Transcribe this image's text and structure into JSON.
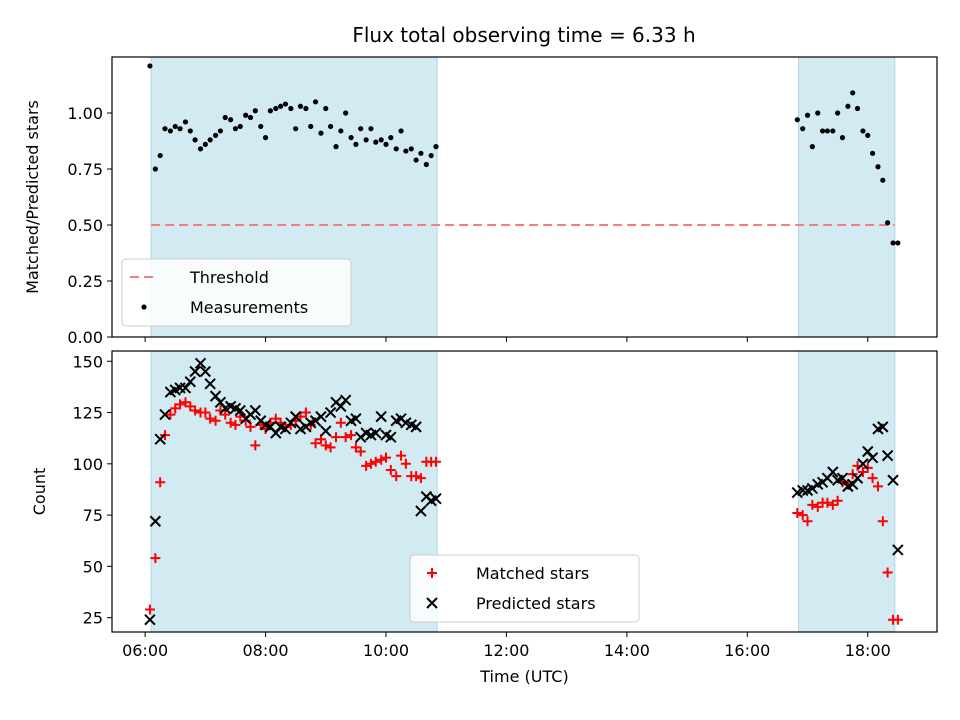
{
  "title": "Flux total observing time = 6.33 h",
  "colors": {
    "span": "#add8e6",
    "threshold": "#f08080",
    "matched": "#ff0000",
    "predicted": "#000000",
    "measure": "#000000"
  },
  "chart_data": [
    {
      "type": "scatter",
      "title": "Flux total observing time = 6.33 h",
      "ylabel": "Matched/Predicted stars",
      "xlabel": "",
      "xlim": [
        5.45,
        19.15
      ],
      "ylim": [
        0,
        1.25
      ],
      "xticks": [
        6,
        8,
        10,
        12,
        14,
        16,
        18
      ],
      "yticks": [
        0,
        0.25,
        0.5,
        0.75,
        1.0
      ],
      "ytick_labels": [
        "0.00",
        "0.25",
        "0.50",
        "0.75",
        "1.00"
      ],
      "legend": [
        "Threshold",
        "Measurements"
      ],
      "legend_position": "lower-left",
      "observing_windows": [
        [
          6.1,
          10.85
        ],
        [
          16.85,
          18.45
        ]
      ],
      "threshold": 0.5,
      "series": [
        {
          "name": "Measurements",
          "x": [
            6.08,
            6.17,
            6.25,
            6.33,
            6.42,
            6.5,
            6.58,
            6.67,
            6.75,
            6.83,
            6.92,
            7.0,
            7.08,
            7.17,
            7.25,
            7.33,
            7.42,
            7.5,
            7.58,
            7.67,
            7.75,
            7.83,
            7.92,
            8.0,
            8.08,
            8.17,
            8.25,
            8.33,
            8.42,
            8.5,
            8.58,
            8.67,
            8.75,
            8.83,
            8.92,
            9.0,
            9.08,
            9.17,
            9.25,
            9.33,
            9.42,
            9.5,
            9.58,
            9.67,
            9.75,
            9.83,
            9.92,
            10.0,
            10.08,
            10.17,
            10.25,
            10.33,
            10.42,
            10.5,
            10.58,
            10.67,
            10.75,
            10.83,
            16.83,
            16.92,
            17.0,
            17.08,
            17.17,
            17.25,
            17.33,
            17.42,
            17.5,
            17.58,
            17.67,
            17.75,
            17.83,
            17.92,
            18.0,
            18.08,
            18.17,
            18.25,
            18.33,
            18.42,
            18.5
          ],
          "y": [
            1.21,
            0.75,
            0.81,
            0.93,
            0.92,
            0.94,
            0.93,
            0.96,
            0.92,
            0.88,
            0.84,
            0.86,
            0.88,
            0.9,
            0.92,
            0.98,
            0.97,
            0.93,
            0.94,
            0.99,
            0.98,
            1.01,
            0.94,
            0.89,
            1.01,
            1.02,
            1.03,
            1.04,
            1.02,
            0.93,
            1.03,
            1.02,
            0.94,
            1.05,
            0.91,
            1.02,
            0.94,
            0.85,
            0.92,
            1.0,
            0.89,
            0.86,
            0.93,
            0.88,
            0.93,
            0.87,
            0.88,
            0.86,
            0.89,
            0.84,
            0.92,
            0.83,
            0.84,
            0.79,
            0.82,
            0.77,
            0.81,
            0.85,
            0.97,
            0.93,
            0.99,
            0.85,
            1.0,
            0.92,
            0.92,
            0.92,
            1.0,
            0.89,
            1.03,
            1.09,
            1.02,
            0.92,
            0.9,
            0.82,
            0.76,
            0.7,
            0.51,
            0.42,
            0.42
          ]
        }
      ]
    },
    {
      "type": "scatter",
      "xlabel": "Time (UTC)",
      "ylabel": "Count",
      "xlim": [
        5.45,
        19.15
      ],
      "ylim": [
        18,
        155
      ],
      "xticks": [
        6,
        8,
        10,
        12,
        14,
        16,
        18
      ],
      "xtick_labels": [
        "06:00",
        "08:00",
        "10:00",
        "12:00",
        "14:00",
        "16:00",
        "18:00"
      ],
      "yticks": [
        25,
        50,
        75,
        100,
        125,
        150
      ],
      "legend": [
        "Matched stars",
        "Predicted stars"
      ],
      "legend_position": "lower-center",
      "observing_windows": [
        [
          6.1,
          10.85
        ],
        [
          16.85,
          18.45
        ]
      ],
      "series": [
        {
          "name": "Matched stars",
          "x": [
            6.08,
            6.17,
            6.25,
            6.33,
            6.42,
            6.5,
            6.58,
            6.67,
            6.75,
            6.83,
            6.92,
            7.0,
            7.08,
            7.17,
            7.25,
            7.33,
            7.42,
            7.5,
            7.58,
            7.67,
            7.75,
            7.83,
            7.92,
            8.0,
            8.08,
            8.17,
            8.25,
            8.33,
            8.42,
            8.5,
            8.58,
            8.67,
            8.75,
            8.83,
            8.92,
            9.0,
            9.08,
            9.17,
            9.25,
            9.33,
            9.42,
            9.5,
            9.58,
            9.67,
            9.75,
            9.83,
            9.92,
            10.0,
            10.08,
            10.17,
            10.25,
            10.33,
            10.42,
            10.5,
            10.58,
            10.67,
            10.75,
            10.83,
            16.83,
            16.92,
            17.0,
            17.08,
            17.17,
            17.25,
            17.33,
            17.42,
            17.5,
            17.58,
            17.67,
            17.75,
            17.83,
            17.92,
            18.0,
            18.08,
            18.17,
            18.25,
            18.33,
            18.42,
            18.5
          ],
          "y": [
            29,
            54,
            91,
            114,
            124,
            127,
            129,
            130,
            128,
            126,
            125,
            125,
            122,
            121,
            126,
            124,
            120,
            119,
            123,
            121,
            118,
            109,
            119,
            117,
            120,
            122,
            120,
            118,
            119,
            121,
            123,
            125,
            119,
            110,
            112,
            109,
            108,
            113,
            120,
            113,
            114,
            108,
            106,
            99,
            100,
            101,
            102,
            103,
            97,
            94,
            104,
            100,
            94,
            94,
            93,
            101,
            101,
            101,
            76,
            75,
            72,
            80,
            79,
            81,
            81,
            80,
            82,
            91,
            90,
            95,
            99,
            96,
            98,
            93,
            89,
            72,
            47,
            24,
            24
          ]
        },
        {
          "name": "Predicted stars",
          "x": [
            6.08,
            6.17,
            6.25,
            6.33,
            6.42,
            6.5,
            6.58,
            6.67,
            6.75,
            6.83,
            6.92,
            7.0,
            7.08,
            7.17,
            7.25,
            7.33,
            7.42,
            7.5,
            7.58,
            7.67,
            7.75,
            7.83,
            7.92,
            8.0,
            8.08,
            8.17,
            8.25,
            8.33,
            8.42,
            8.5,
            8.58,
            8.67,
            8.75,
            8.83,
            8.92,
            9.0,
            9.08,
            9.17,
            9.25,
            9.33,
            9.42,
            9.5,
            9.58,
            9.67,
            9.75,
            9.83,
            9.92,
            10.0,
            10.08,
            10.17,
            10.25,
            10.33,
            10.42,
            10.5,
            10.58,
            10.67,
            10.75,
            10.83,
            16.83,
            16.92,
            17.0,
            17.08,
            17.17,
            17.25,
            17.33,
            17.42,
            17.5,
            17.58,
            17.67,
            17.75,
            17.83,
            17.92,
            18.0,
            18.08,
            18.17,
            18.25,
            18.33,
            18.42,
            18.5
          ],
          "y": [
            24,
            72,
            112,
            124,
            135,
            136,
            137,
            137,
            140,
            145,
            149,
            145,
            139,
            133,
            130,
            127,
            128,
            127,
            126,
            122,
            124,
            126,
            121,
            119,
            118,
            115,
            118,
            117,
            120,
            123,
            117,
            118,
            120,
            121,
            123,
            116,
            125,
            130,
            128,
            131,
            121,
            122,
            113,
            115,
            114,
            115,
            123,
            114,
            113,
            121,
            122,
            120,
            119,
            118,
            77,
            84,
            82,
            83,
            86,
            87,
            87,
            88,
            90,
            91,
            93,
            96,
            92,
            93,
            89,
            90,
            93,
            100,
            106,
            103,
            117,
            118,
            104,
            92,
            58
          ]
        }
      ]
    }
  ]
}
